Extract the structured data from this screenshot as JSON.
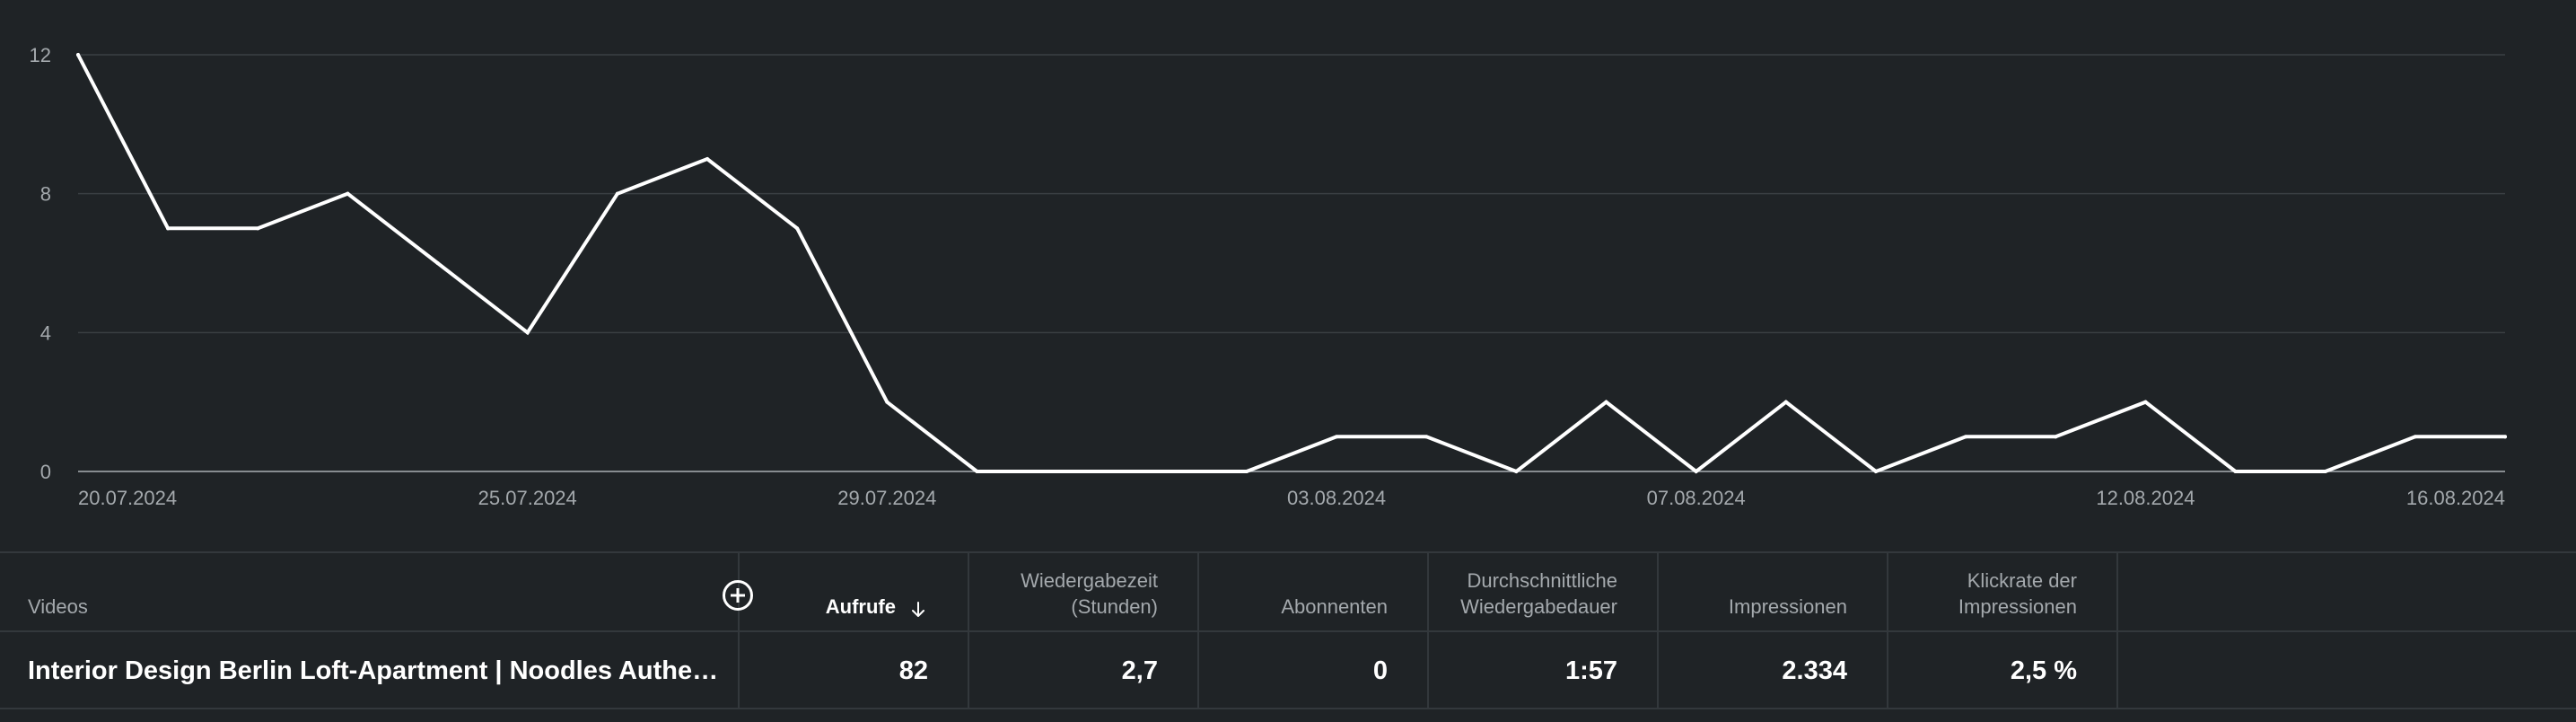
{
  "chart_data": {
    "type": "line",
    "title": "",
    "xlabel": "",
    "ylabel": "",
    "ylim": [
      0,
      12
    ],
    "y_ticks": [
      0,
      4,
      8,
      12
    ],
    "grid": true,
    "x_tick_labels": [
      "20.07.2024",
      "25.07.2024",
      "29.07.2024",
      "03.08.2024",
      "07.08.2024",
      "12.08.2024",
      "16.08.2024"
    ],
    "x": [
      "20.07.2024",
      "21.07.2024",
      "22.07.2024",
      "23.07.2024",
      "24.07.2024",
      "25.07.2024",
      "26.07.2024",
      "27.07.2024",
      "28.07.2024",
      "29.07.2024",
      "30.07.2024",
      "31.07.2024",
      "01.08.2024",
      "02.08.2024",
      "03.08.2024",
      "04.08.2024",
      "05.08.2024",
      "06.08.2024",
      "07.08.2024",
      "08.08.2024",
      "09.08.2024",
      "10.08.2024",
      "11.08.2024",
      "12.08.2024",
      "13.08.2024",
      "14.08.2024",
      "15.08.2024",
      "16.08.2024"
    ],
    "series": [
      {
        "values": [
          12,
          7,
          7,
          8,
          6,
          4,
          8,
          9,
          7,
          2,
          0,
          0,
          0,
          0,
          1,
          1,
          0,
          2,
          0,
          2,
          0,
          1,
          1,
          2,
          0,
          0,
          1,
          1
        ]
      }
    ],
    "colors": {
      "line": "#ffffff",
      "grid": "#3a3f43",
      "background": "#1f2326"
    }
  },
  "table": {
    "add_column_icon": "plus-circle-icon",
    "sort_icon": "arrow-down-icon",
    "headers": {
      "video": "Videos",
      "views": "Aufrufe",
      "watch_time": "Wiedergabezeit\n(Stunden)",
      "subscribers": "Abonnenten",
      "avg_duration": "Durchschnittliche\nWiedergabedauer",
      "impressions": "Impressionen",
      "ctr": "Klickrate der\nImpressionen"
    },
    "row": {
      "video": "Interior Design Berlin Loft-Apartment | Noodles Authen…",
      "views": "82",
      "watch_time": "2,7",
      "subscribers": "0",
      "avg_duration": "1:57",
      "impressions": "2.334",
      "ctr": "2,5 %"
    }
  }
}
